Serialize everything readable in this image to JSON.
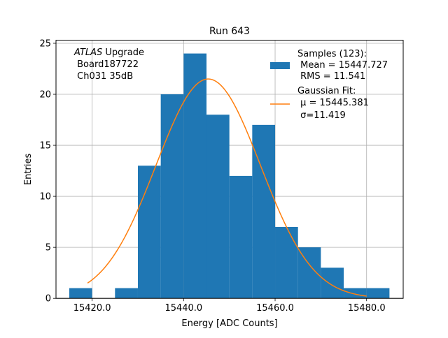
{
  "chart_data": {
    "type": "bar",
    "title": "Run 643",
    "xlabel": "Energy [ADC Counts]",
    "ylabel": "Entries",
    "xlim": [
      15412.1,
      15488.0
    ],
    "ylim": [
      0,
      25.3
    ],
    "grid": true,
    "x_ticks": [
      15420.0,
      15440.0,
      15460.0,
      15480.0
    ],
    "x_tick_labels": [
      "15420.0",
      "15440.0",
      "15460.0",
      "15480.0"
    ],
    "y_ticks": [
      0,
      5,
      10,
      15,
      20,
      25
    ],
    "y_tick_labels": [
      "0",
      "5",
      "10",
      "15",
      "20",
      "25"
    ],
    "bin_edges": [
      15415,
      15420,
      15425,
      15430,
      15435,
      15440,
      15445,
      15450,
      15455,
      15460,
      15465,
      15470,
      15475,
      15480,
      15485
    ],
    "values": [
      1,
      0,
      1,
      13,
      20,
      24,
      18,
      12,
      17,
      7,
      5,
      3,
      1,
      1
    ],
    "series": [
      {
        "name": "Samples (123):",
        "kind": "histogram",
        "color": "#1f77b4"
      },
      {
        "name": "Gaussian Fit:",
        "kind": "line",
        "color": "#ff7f0e",
        "amplitude": 21.5,
        "mu": 15445.381,
        "sigma": 11.419,
        "x_range": [
          15419,
          15480
        ]
      }
    ],
    "annotation_lines": [
      "ATLAS Upgrade",
      " Board187722",
      " Ch031 35dB"
    ],
    "legend": {
      "placement": "top-right",
      "entries": [
        {
          "lines": [
            "Samples (123):",
            " Mean = 15447.727",
            " RMS = 11.541"
          ]
        },
        {
          "lines": [
            "Gaussian Fit:",
            " μ = 15445.381",
            " σ=11.419"
          ]
        }
      ]
    }
  }
}
